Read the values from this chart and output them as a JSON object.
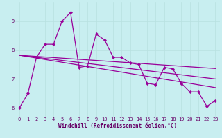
{
  "xlabel": "Windchill (Refroidissement éolien,°C)",
  "background_color": "#c8eef0",
  "line_color": "#990099",
  "grid_color": "#b8e0e0",
  "xlim": [
    -0.5,
    23.5
  ],
  "ylim": [
    5.7,
    9.65
  ],
  "yticks": [
    6,
    7,
    8,
    9
  ],
  "xticks": [
    0,
    1,
    2,
    3,
    4,
    5,
    6,
    7,
    8,
    9,
    10,
    11,
    12,
    13,
    14,
    15,
    16,
    17,
    18,
    19,
    20,
    21,
    22,
    23
  ],
  "series1_x": [
    0,
    1,
    2,
    3,
    4,
    5,
    6,
    7,
    8,
    9,
    10,
    11,
    12,
    13,
    14,
    15,
    16,
    17,
    18,
    19,
    20,
    21,
    22,
    23
  ],
  "series1_y": [
    6.0,
    6.5,
    7.75,
    8.2,
    8.2,
    9.0,
    9.3,
    7.4,
    7.45,
    8.55,
    8.35,
    7.75,
    7.75,
    7.55,
    7.5,
    6.85,
    6.8,
    7.4,
    7.35,
    6.85,
    6.55,
    6.55,
    6.05,
    6.25
  ],
  "series2_x": [
    0,
    1,
    2,
    3,
    4,
    5,
    6,
    7,
    8,
    9,
    10,
    11,
    12,
    13,
    14,
    15,
    16,
    17,
    18,
    19,
    20,
    21,
    22,
    23
  ],
  "series2_y": [
    7.82,
    7.8,
    7.78,
    7.76,
    7.74,
    7.72,
    7.7,
    7.68,
    7.66,
    7.64,
    7.62,
    7.6,
    7.58,
    7.56,
    7.54,
    7.52,
    7.5,
    7.48,
    7.46,
    7.44,
    7.42,
    7.4,
    7.38,
    7.36
  ],
  "series3_x": [
    0,
    23
  ],
  "series3_y": [
    7.82,
    7.0
  ],
  "series4_x": [
    0,
    23
  ],
  "series4_y": [
    7.82,
    6.7
  ]
}
